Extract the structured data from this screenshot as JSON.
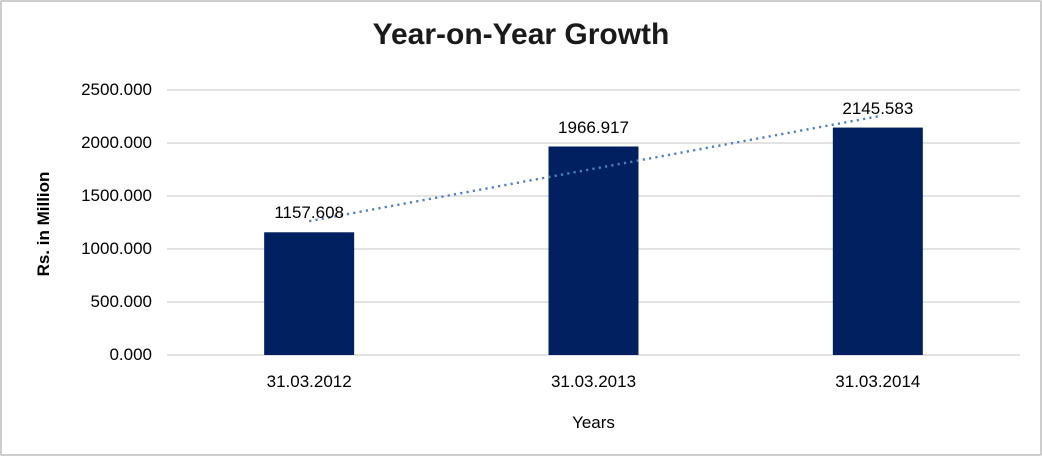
{
  "chart_data": {
    "type": "bar",
    "title": "Year-on-Year Growth",
    "xlabel": "Years",
    "ylabel": "Rs. in Million",
    "categories": [
      "31.03.2012",
      "31.03.2013",
      "31.03.2014"
    ],
    "values": [
      1157.608,
      1966.917,
      2145.583
    ],
    "data_labels": [
      "1157.608",
      "1966.917",
      "2145.583"
    ],
    "y_ticks": [
      0,
      500,
      1000,
      1500,
      2000,
      2500
    ],
    "y_tick_labels": [
      "0.000",
      "500.000",
      "1000.000",
      "1500.000",
      "2000.000",
      "2500.000"
    ],
    "ylim": [
      0,
      2500
    ],
    "grid": true,
    "legend": false,
    "trendline": {
      "type": "linear",
      "style": "dotted"
    },
    "colors": {
      "bar": "#002060",
      "trendline": "#4f81bd",
      "gridline": "#d9d9d9",
      "title": "#1a1a1a",
      "text": "#000000"
    }
  }
}
